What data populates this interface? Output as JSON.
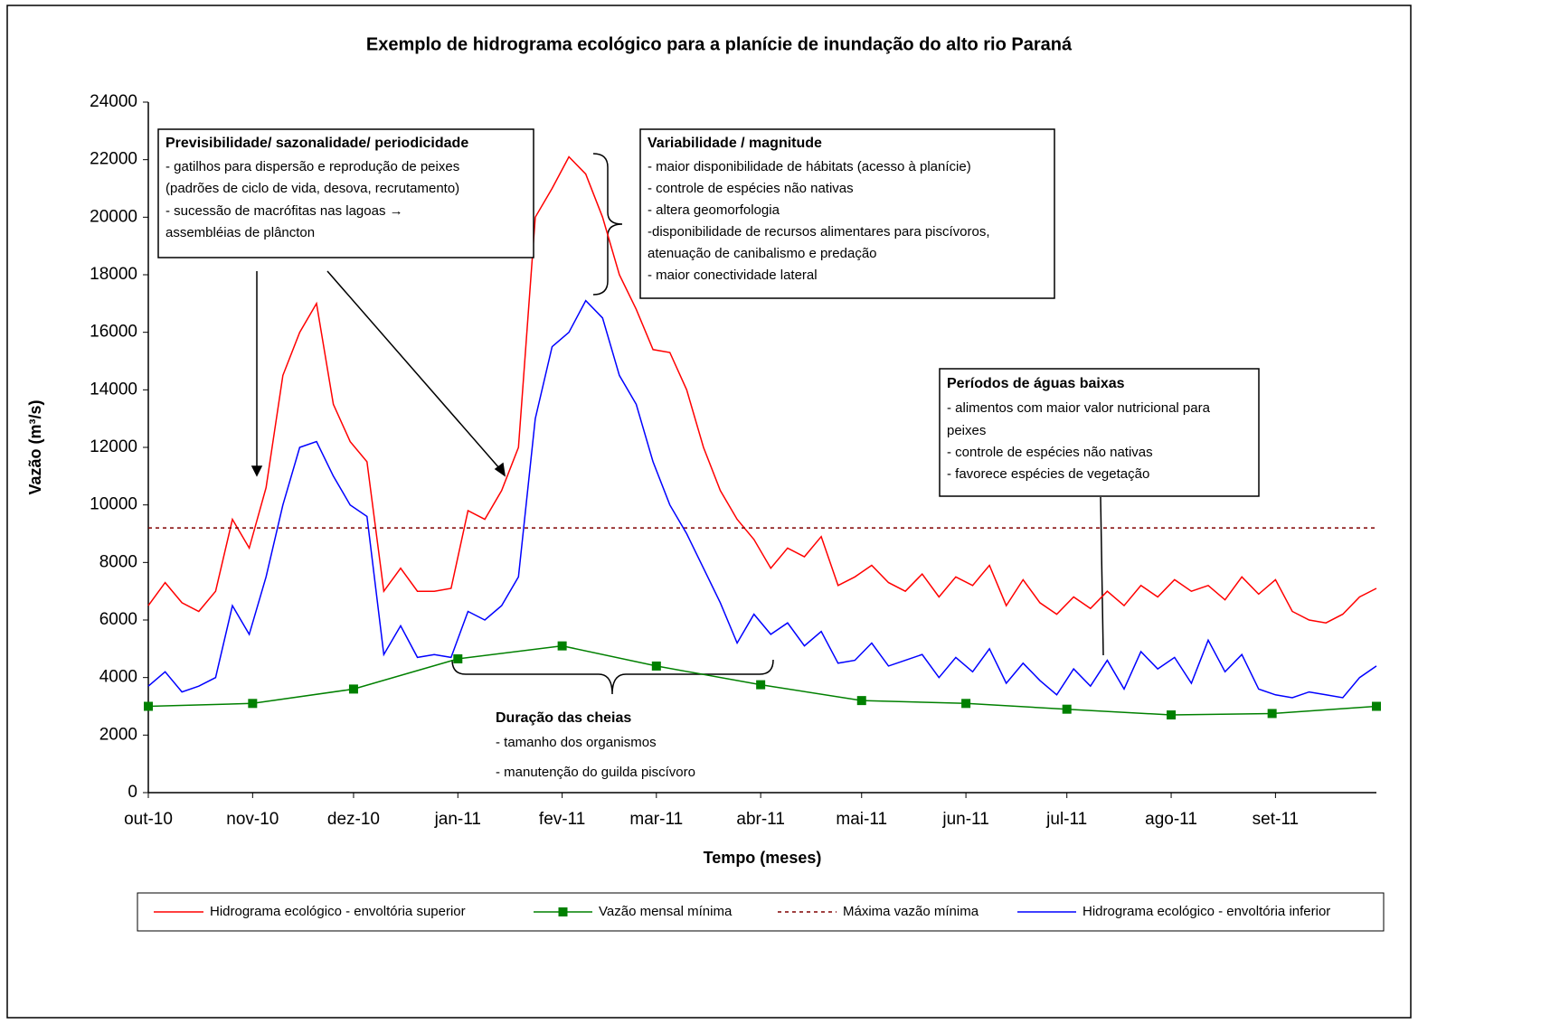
{
  "chart_data": {
    "type": "line",
    "title": "Exemplo de hidrograma ecológico para a planície de inundação do alto rio Paraná",
    "xlabel": "Tempo (meses)",
    "ylabel": "Vazão (m³/s)",
    "xlim": [
      0,
      365
    ],
    "xticks": [
      {
        "value": 0,
        "label": "out-10"
      },
      {
        "value": 31,
        "label": "nov-10"
      },
      {
        "value": 61,
        "label": "dez-10"
      },
      {
        "value": 92,
        "label": "jan-11"
      },
      {
        "value": 123,
        "label": "fev-11"
      },
      {
        "value": 151,
        "label": "mar-11"
      },
      {
        "value": 182,
        "label": "abr-11"
      },
      {
        "value": 212,
        "label": "mai-11"
      },
      {
        "value": 243,
        "label": "jun-11"
      },
      {
        "value": 273,
        "label": "jul-11"
      },
      {
        "value": 304,
        "label": "ago-11"
      },
      {
        "value": 335,
        "label": "set-11"
      }
    ],
    "ylim": [
      0,
      24000
    ],
    "yticks": [
      0,
      2000,
      4000,
      6000,
      8000,
      10000,
      12000,
      14000,
      16000,
      18000,
      20000,
      22000,
      24000
    ],
    "series": [
      {
        "name": "Hidrograma ecológico - envoltória superior",
        "color": "#ff0000",
        "x": [
          0,
          5,
          10,
          15,
          20,
          25,
          30,
          35,
          40,
          45,
          50,
          55,
          60,
          65,
          70,
          75,
          80,
          85,
          90,
          95,
          100,
          105,
          110,
          115,
          120,
          125,
          130,
          135,
          140,
          145,
          150,
          155,
          160,
          165,
          170,
          175,
          180,
          185,
          190,
          195,
          200,
          205,
          210,
          215,
          220,
          225,
          230,
          235,
          240,
          245,
          250,
          255,
          260,
          265,
          270,
          275,
          280,
          285,
          290,
          295,
          300,
          305,
          310,
          315,
          320,
          325,
          330,
          335,
          340,
          345,
          350,
          355,
          360,
          365
        ],
        "values": [
          6500,
          7300,
          6600,
          6300,
          7000,
          9500,
          8500,
          10600,
          14500,
          16000,
          17000,
          13500,
          12200,
          11500,
          7000,
          7800,
          7000,
          7000,
          7100,
          9800,
          9500,
          10500,
          12000,
          20000,
          21000,
          22100,
          21500,
          20000,
          18000,
          16800,
          15400,
          15300,
          14000,
          12000,
          10500,
          9500,
          8800,
          7800,
          8500,
          8200,
          8900,
          7200,
          7500,
          7900,
          7300,
          7000,
          7600,
          6800,
          7500,
          7200,
          7900,
          6500,
          7400,
          6600,
          6200,
          6800,
          6400,
          7000,
          6500,
          7200,
          6800,
          7400,
          7000,
          7200,
          6700,
          7500,
          6900,
          7400,
          6300,
          6000,
          5900,
          6200,
          6800,
          7100
        ]
      },
      {
        "name": "Vazão mensal mínima",
        "color": "#008000",
        "marker": "square",
        "x": [
          0,
          31,
          61,
          92,
          123,
          151,
          182,
          212,
          243,
          273,
          304,
          334,
          365
        ],
        "values": [
          3000,
          3100,
          3600,
          4650,
          5100,
          4400,
          3750,
          3200,
          3100,
          2900,
          2700,
          2750,
          3000
        ]
      },
      {
        "name": "Máxima vazão mínima",
        "color": "#800000",
        "style": "dashed",
        "value": 9200
      },
      {
        "name": "Hidrograma ecológico - envoltória inferior",
        "color": "#0000ff",
        "x": [
          0,
          5,
          10,
          15,
          20,
          25,
          30,
          35,
          40,
          45,
          50,
          55,
          60,
          65,
          70,
          75,
          80,
          85,
          90,
          95,
          100,
          105,
          110,
          115,
          120,
          125,
          130,
          135,
          140,
          145,
          150,
          155,
          160,
          165,
          170,
          175,
          180,
          185,
          190,
          195,
          200,
          205,
          210,
          215,
          220,
          225,
          230,
          235,
          240,
          245,
          250,
          255,
          260,
          265,
          270,
          275,
          280,
          285,
          290,
          295,
          300,
          305,
          310,
          315,
          320,
          325,
          330,
          335,
          340,
          345,
          350,
          355,
          360,
          365
        ],
        "values": [
          3700,
          4200,
          3500,
          3700,
          4000,
          6500,
          5500,
          7500,
          10000,
          12000,
          12200,
          11000,
          10000,
          9600,
          4800,
          5800,
          4700,
          4800,
          4700,
          6300,
          6000,
          6500,
          7500,
          13000,
          15500,
          16000,
          17100,
          16500,
          14500,
          13500,
          11500,
          10000,
          9000,
          7800,
          6600,
          5200,
          6200,
          5500,
          5900,
          5100,
          5600,
          4500,
          4600,
          5200,
          4400,
          4600,
          4800,
          4000,
          4700,
          4200,
          5000,
          3800,
          4500,
          3900,
          3400,
          4300,
          3700,
          4600,
          3600,
          4900,
          4300,
          4700,
          3800,
          5300,
          4200,
          4800,
          3600,
          3400,
          3300,
          3500,
          3400,
          3300,
          4000,
          4400
        ]
      }
    ],
    "annotations": [
      {
        "title": "Previsibilidade/ sazonalidade/ periodicidade",
        "lines": [
          "- gatilhos para dispersão e reprodução de peixes",
          "(padrões de ciclo de vida, desova, recrutamento)",
          "- sucessão de macrófitas nas lagoas →",
          "assembléias de plâncton"
        ]
      },
      {
        "title": "Variabilidade /  magnitude",
        "lines": [
          "- maior disponibilidade de hábitats (acesso à planície)",
          "- controle de espécies não nativas",
          "- altera geomorfologia",
          "-disponibilidade de recursos alimentares para piscívoros,",
          "atenuação de canibalismo e predação",
          "- maior conectividade lateral"
        ]
      },
      {
        "title": "Períodos de águas baixas",
        "lines": [
          "- alimentos com maior valor nutricional para",
          "peixes",
          "- controle de espécies não nativas",
          "- favorece espécies de vegetação"
        ]
      },
      {
        "title": "Duração das cheias",
        "lines": [
          "- tamanho dos organismos",
          "- manutenção do guilda piscívoro"
        ]
      }
    ]
  }
}
